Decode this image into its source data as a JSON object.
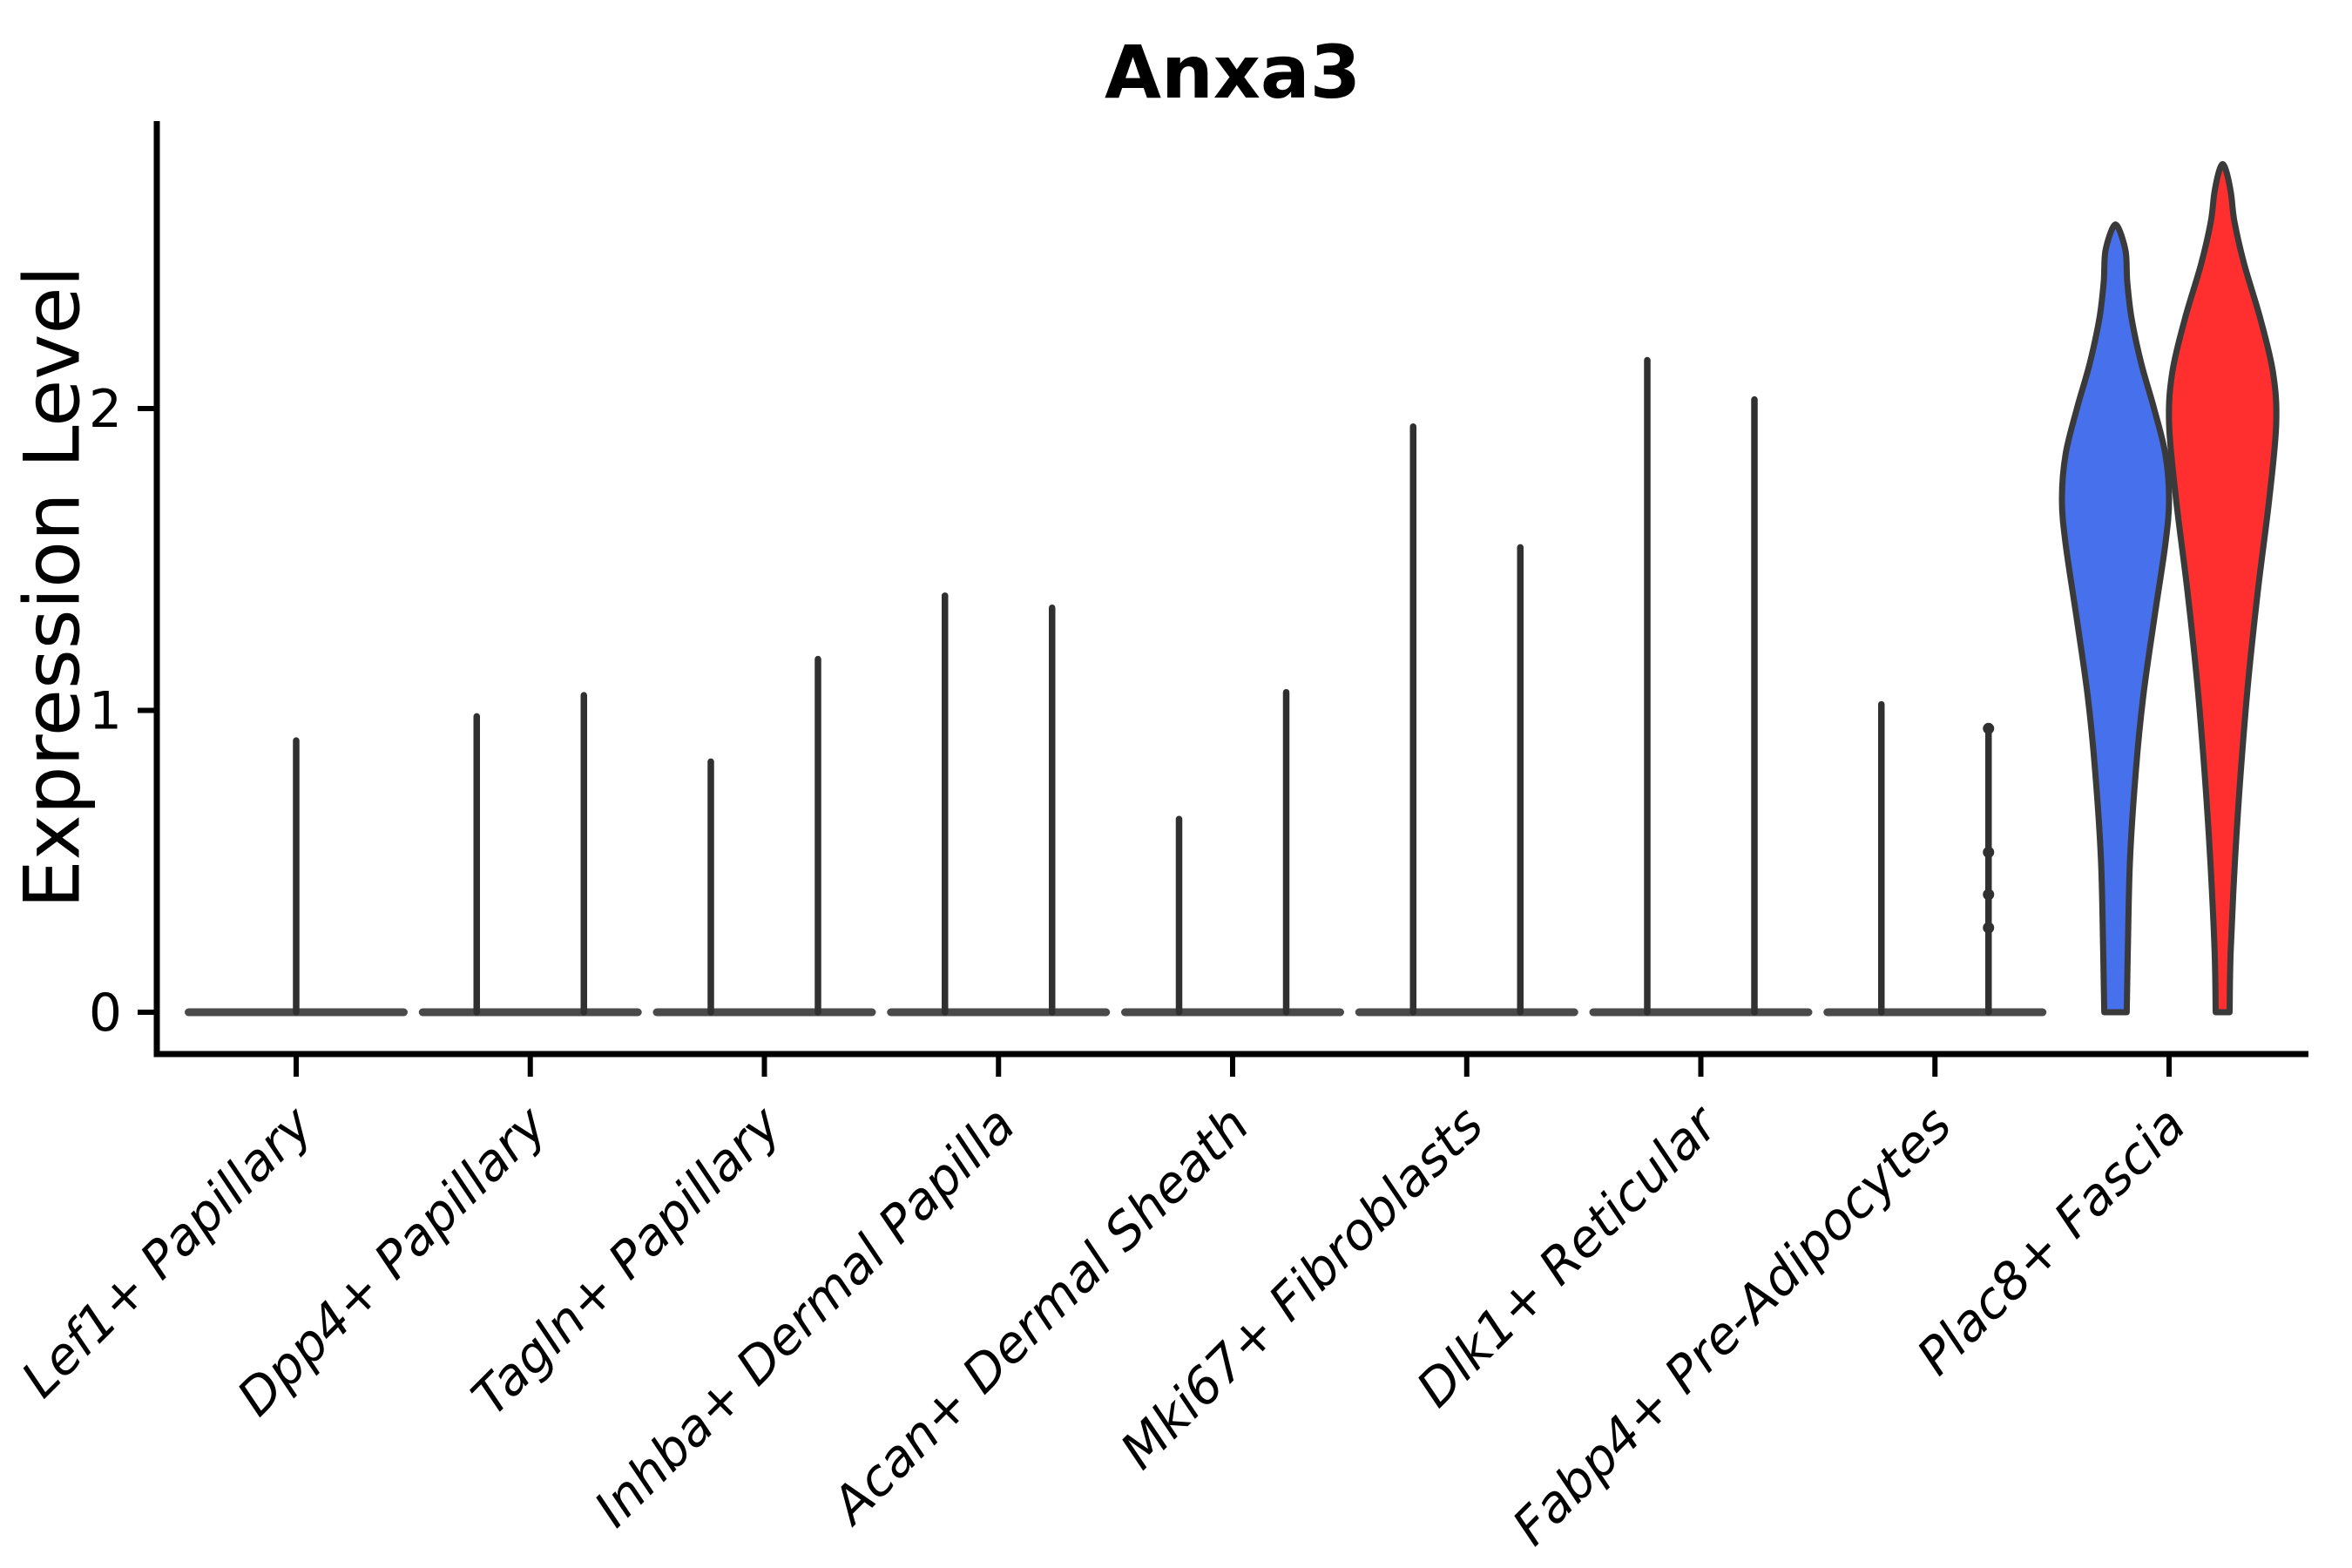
{
  "title": "Anxa3",
  "ylabel": "Expression Level",
  "chart_data": {
    "type": "violin",
    "title": "Anxa3",
    "xlabel": "",
    "ylabel": "Expression Level",
    "ylim": [
      -0.14,
      2.95
    ],
    "yticks": [
      "0",
      "1",
      "2"
    ],
    "ytick_values": [
      0,
      1,
      2
    ],
    "grid": false,
    "legend": "none",
    "categories": [
      "Lef1+ Papillary",
      "Dpp4+ Papillary",
      "Tagln+ Papillary",
      "Inhba+ Dermal Papilla",
      "Acan+ Dermal Sheath",
      "Mki67+ Fibroblasts",
      "Dlk1+ Reticular",
      "Fabp4+ Pre-Adipocytes",
      "Plac8+ Fascia"
    ],
    "groups": [
      {
        "name": "group-1",
        "color": "#4670ec"
      },
      {
        "name": "group-2",
        "color": "#ff2f2f"
      }
    ],
    "colors": {
      "violin_blue": "#4670ec",
      "violin_red": "#ff2f2f",
      "violin_outline": "#3a3a3a",
      "spike": "#303030",
      "baseline": "#4a4a4a",
      "axis": "#000000"
    },
    "cells": [
      {
        "category": "Lef1+ Papillary",
        "violins": [
          {
            "kind": "spike",
            "pos": "center",
            "max": 0.9
          }
        ]
      },
      {
        "category": "Dpp4+ Papillary",
        "violins": [
          {
            "kind": "spike",
            "pos": "left",
            "max": 0.98
          },
          {
            "kind": "spike",
            "pos": "right",
            "max": 1.05
          }
        ]
      },
      {
        "category": "Tagln+ Papillary",
        "violins": [
          {
            "kind": "spike",
            "pos": "left",
            "max": 0.83
          },
          {
            "kind": "spike",
            "pos": "right",
            "max": 1.17
          }
        ]
      },
      {
        "category": "Inhba+ Dermal Papilla",
        "violins": [
          {
            "kind": "spike",
            "pos": "left",
            "max": 1.38
          },
          {
            "kind": "spike",
            "pos": "right",
            "max": 1.34
          }
        ]
      },
      {
        "category": "Acan+ Dermal Sheath",
        "violins": [
          {
            "kind": "spike",
            "pos": "left",
            "max": 0.64
          },
          {
            "kind": "spike",
            "pos": "right",
            "max": 1.06
          }
        ]
      },
      {
        "category": "Mki67+ Fibroblasts",
        "violins": [
          {
            "kind": "spike",
            "pos": "left",
            "max": 1.94
          },
          {
            "kind": "spike",
            "pos": "right",
            "max": 1.54
          }
        ]
      },
      {
        "category": "Dlk1+ Reticular",
        "violins": [
          {
            "kind": "spike",
            "pos": "left",
            "max": 2.16
          },
          {
            "kind": "spike",
            "pos": "right",
            "max": 2.03
          }
        ]
      },
      {
        "category": "Fabp4+ Pre-Adipocytes",
        "violins": [
          {
            "kind": "spike",
            "pos": "left",
            "max": 1.02
          },
          {
            "kind": "spike",
            "pos": "right",
            "max": 0.94,
            "dots": [
              0.94,
              0.53,
              0.39,
              0.28
            ]
          }
        ]
      },
      {
        "category": "Plac8+ Fascia",
        "violins": [
          {
            "kind": "violin",
            "pos": "left",
            "group": 0,
            "max": 2.6,
            "profile": [
              [
                0.0,
                0.21
              ],
              [
                0.2,
                0.23
              ],
              [
                0.5,
                0.27
              ],
              [
                0.8,
                0.38
              ],
              [
                1.05,
                0.52
              ],
              [
                1.3,
                0.72
              ],
              [
                1.55,
                0.93
              ],
              [
                1.7,
                1.0
              ],
              [
                1.85,
                0.93
              ],
              [
                2.0,
                0.72
              ],
              [
                2.15,
                0.48
              ],
              [
                2.3,
                0.3
              ],
              [
                2.42,
                0.22
              ],
              [
                2.52,
                0.19
              ],
              [
                2.6,
                0.05
              ]
            ]
          },
          {
            "kind": "violin",
            "pos": "right",
            "group": 1,
            "max": 2.8,
            "profile": [
              [
                0.0,
                0.13
              ],
              [
                0.2,
                0.15
              ],
              [
                0.5,
                0.23
              ],
              [
                0.8,
                0.34
              ],
              [
                1.1,
                0.48
              ],
              [
                1.4,
                0.66
              ],
              [
                1.7,
                0.87
              ],
              [
                1.95,
                1.0
              ],
              [
                2.12,
                0.94
              ],
              [
                2.3,
                0.7
              ],
              [
                2.48,
                0.4
              ],
              [
                2.62,
                0.22
              ],
              [
                2.72,
                0.15
              ],
              [
                2.8,
                0.04
              ]
            ]
          }
        ]
      }
    ]
  }
}
